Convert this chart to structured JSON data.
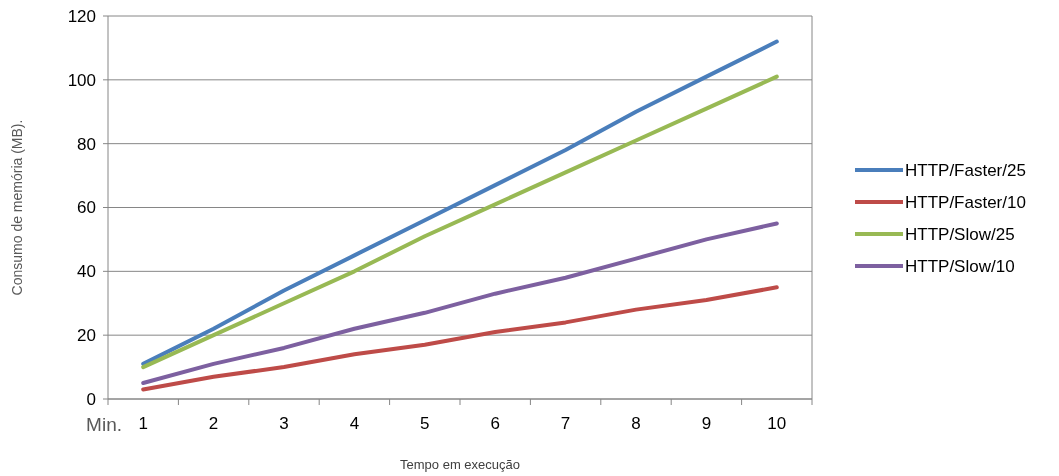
{
  "chart_data": {
    "type": "line",
    "xlabel": "Tempo em execução",
    "ylabel": "Consumo de memória  (MB).",
    "annotations": [
      "Min."
    ],
    "categories": [
      "1",
      "2",
      "3",
      "4",
      "5",
      "6",
      "7",
      "8",
      "9",
      "10"
    ],
    "series": [
      {
        "name": "HTTP/Faster/25",
        "color": "#4a7ebb",
        "values": [
          11,
          22,
          34,
          45,
          56,
          67,
          78,
          90,
          101,
          112
        ]
      },
      {
        "name": "HTTP/Faster/10",
        "color": "#be4b48",
        "values": [
          3,
          7,
          10,
          14,
          17,
          21,
          24,
          28,
          31,
          35
        ]
      },
      {
        "name": "HTTP/Slow/25",
        "color": "#98b954",
        "values": [
          10,
          20,
          30,
          40,
          51,
          61,
          71,
          81,
          91,
          101
        ]
      },
      {
        "name": "HTTP/Slow/10",
        "color": "#7d60a0",
        "values": [
          5,
          11,
          16,
          22,
          27,
          33,
          38,
          44,
          50,
          55
        ]
      }
    ],
    "ylim": [
      0,
      120
    ],
    "yticks": [
      0,
      20,
      40,
      60,
      80,
      100,
      120
    ],
    "grid": "y",
    "legend": "right",
    "marker": "none",
    "line_style": "solid"
  }
}
